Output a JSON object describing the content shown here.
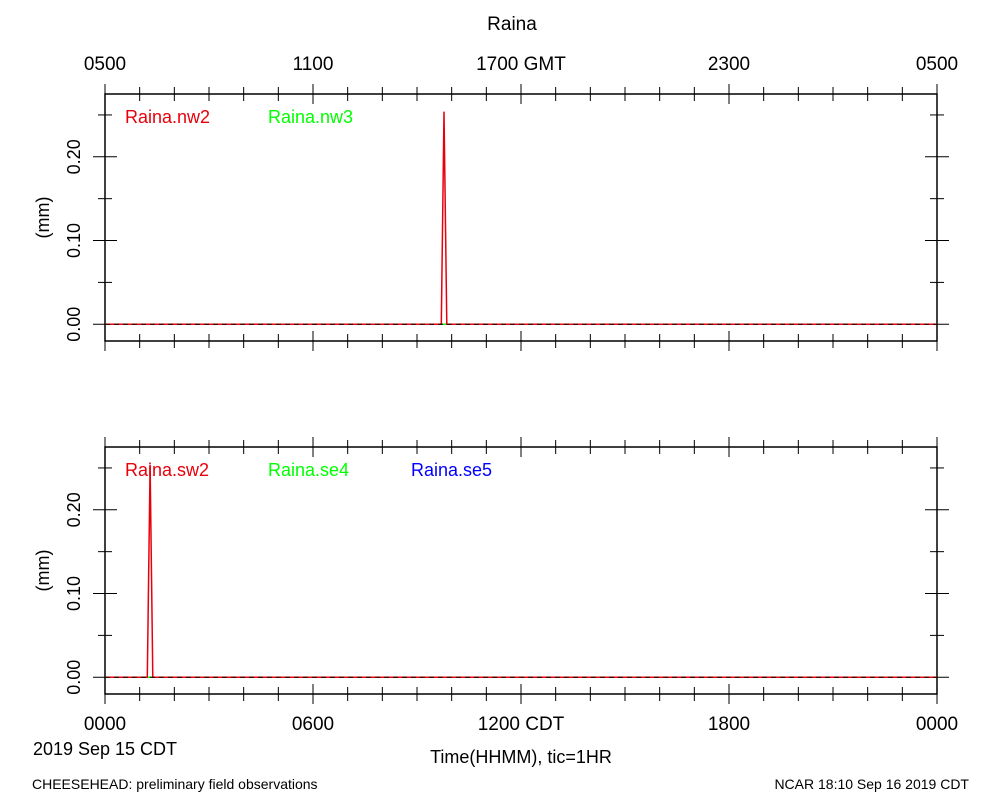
{
  "page_title": "Raina",
  "footer": {
    "left": "CHEESEHEAD: preliminary field observations",
    "right": "NCAR 18:10 Sep 16 2019 CDT"
  },
  "chart_data": [
    {
      "type": "line",
      "title": "Raina",
      "ylabel": "(mm)",
      "xlim_hours": [
        0,
        24
      ],
      "ylim": [
        -0.02,
        0.275
      ],
      "yticks": [
        0.0,
        0.1,
        0.2
      ],
      "ytick_labels": [
        "0.00",
        "0.10",
        "0.20"
      ],
      "top_axis_ticks": [
        {
          "hour": 0,
          "label": "0500"
        },
        {
          "hour": 6,
          "label": "1100"
        },
        {
          "hour": 12,
          "label": "1700 GMT"
        },
        {
          "hour": 18,
          "label": "2300"
        },
        {
          "hour": 24,
          "label": "0500"
        }
      ],
      "zero_line": "dashed",
      "series": [
        {
          "name": "Raina.nw2",
          "color": "#e8000b",
          "x": [
            0,
            9.7,
            9.78,
            9.86,
            24
          ],
          "y": [
            0,
            0,
            0.254,
            0,
            0
          ]
        },
        {
          "name": "Raina.nw3",
          "color": "#00ff00",
          "x": [
            0,
            24
          ],
          "y": [
            0,
            0
          ]
        }
      ]
    },
    {
      "type": "line",
      "ylabel": "(mm)",
      "xlabel": "Time(HHMM), tic=1HR",
      "date_label": "2019 Sep 15 CDT",
      "xlim_hours": [
        0,
        24
      ],
      "ylim": [
        -0.02,
        0.275
      ],
      "yticks": [
        0.0,
        0.1,
        0.2
      ],
      "ytick_labels": [
        "0.00",
        "0.10",
        "0.20"
      ],
      "bottom_axis_ticks": [
        {
          "hour": 0,
          "label": "0000"
        },
        {
          "hour": 6,
          "label": "0600"
        },
        {
          "hour": 12,
          "label": "1200 CDT"
        },
        {
          "hour": 18,
          "label": "1800"
        },
        {
          "hour": 24,
          "label": "0000"
        }
      ],
      "zero_line": "dashed",
      "series": [
        {
          "name": "Raina.sw2",
          "color": "#e8000b",
          "x": [
            0,
            1.22,
            1.3,
            1.38,
            24
          ],
          "y": [
            0,
            0,
            0.254,
            0,
            0
          ]
        },
        {
          "name": "Raina.se4",
          "color": "#00ff00",
          "x": [
            0,
            24
          ],
          "y": [
            0,
            0
          ]
        },
        {
          "name": "Raina.se5",
          "color": "#0000ff",
          "x": [
            0,
            24
          ],
          "y": [
            0,
            0
          ]
        }
      ]
    }
  ]
}
